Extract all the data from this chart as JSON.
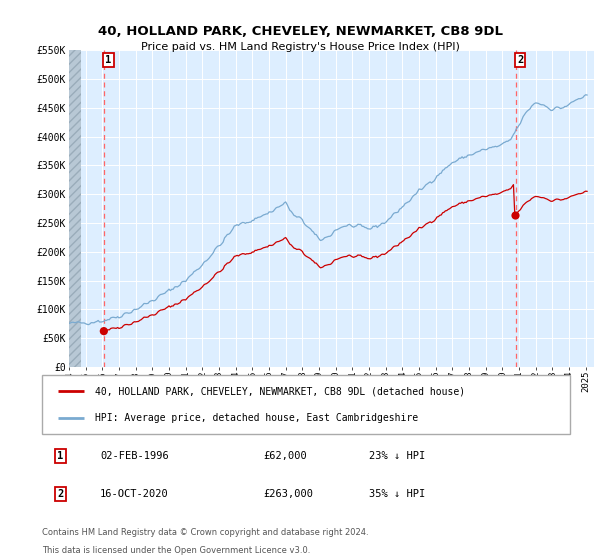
{
  "title": "40, HOLLAND PARK, CHEVELEY, NEWMARKET, CB8 9DL",
  "subtitle": "Price paid vs. HM Land Registry's House Price Index (HPI)",
  "ylim": [
    0,
    550000
  ],
  "yticks": [
    0,
    50000,
    100000,
    150000,
    200000,
    250000,
    300000,
    350000,
    400000,
    450000,
    500000,
    550000
  ],
  "ytick_labels": [
    "£0",
    "£50K",
    "£100K",
    "£150K",
    "£200K",
    "£250K",
    "£300K",
    "£350K",
    "£400K",
    "£450K",
    "£500K",
    "£550K"
  ],
  "xlim_start": 1994.0,
  "xlim_end": 2025.5,
  "xtick_years": [
    1994,
    1995,
    1996,
    1997,
    1998,
    1999,
    2000,
    2001,
    2002,
    2003,
    2004,
    2005,
    2006,
    2007,
    2008,
    2009,
    2010,
    2011,
    2012,
    2013,
    2014,
    2015,
    2016,
    2017,
    2018,
    2019,
    2020,
    2021,
    2022,
    2023,
    2024,
    2025
  ],
  "plot_bg_color": "#ddeeff",
  "grid_color": "#c8d8e8",
  "red_line_color": "#cc0000",
  "blue_line_color": "#7aaad0",
  "vline_color": "#ff6666",
  "purchase1_x": 1996.09,
  "purchase1_y": 62000,
  "purchase1_label": "1",
  "purchase1_date": "02-FEB-1996",
  "purchase1_price": "£62,000",
  "purchase1_hpi": "23% ↓ HPI",
  "purchase2_x": 2020.79,
  "purchase2_y": 263000,
  "purchase2_label": "2",
  "purchase2_date": "16-OCT-2020",
  "purchase2_price": "£263,000",
  "purchase2_hpi": "35% ↓ HPI",
  "legend_line1": "40, HOLLAND PARK, CHEVELEY, NEWMARKET, CB8 9DL (detached house)",
  "legend_line2": "HPI: Average price, detached house, East Cambridgeshire",
  "footer1": "Contains HM Land Registry data © Crown copyright and database right 2024.",
  "footer2": "This data is licensed under the Open Government Licence v3.0."
}
